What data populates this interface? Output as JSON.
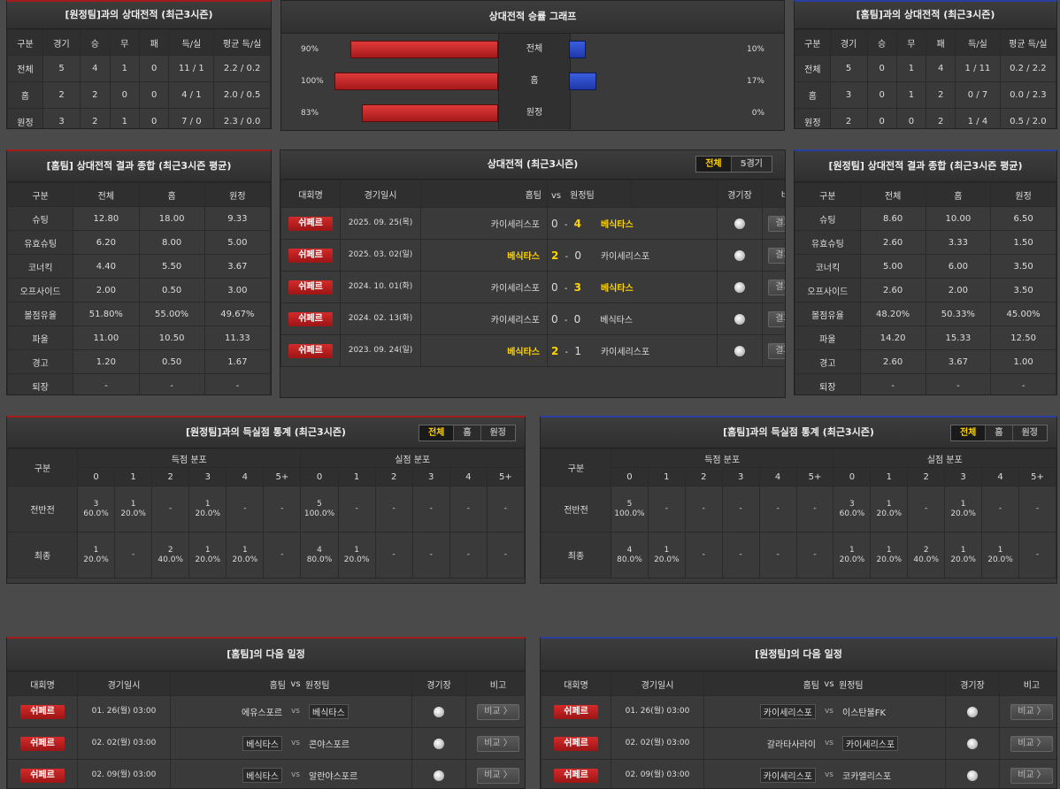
{
  "away_h2h": {
    "title": "[원정팀]과의 상대전적 (최근3시즌)",
    "headers": [
      "구분",
      "경기",
      "승",
      "무",
      "패",
      "득/실",
      "평균 득/실"
    ],
    "rows": [
      [
        "전체",
        "5",
        "4",
        "1",
        "0",
        "11 / 1",
        "2.2 / 0.2"
      ],
      [
        "홈",
        "2",
        "2",
        "0",
        "0",
        "4 / 1",
        "2.0 / 0.5"
      ],
      [
        "원정",
        "3",
        "2",
        "1",
        "0",
        "7 / 0",
        "2.3 / 0.0"
      ]
    ]
  },
  "home_h2h": {
    "title": "[홈팀]과의 상대전적 (최근3시즌)",
    "headers": [
      "구분",
      "경기",
      "승",
      "무",
      "패",
      "득/실",
      "평균 득/실"
    ],
    "rows": [
      [
        "전체",
        "5",
        "0",
        "1",
        "4",
        "1 / 11",
        "0.2 / 2.2"
      ],
      [
        "홈",
        "3",
        "0",
        "1",
        "2",
        "0 / 7",
        "0.0 / 2.3"
      ],
      [
        "원정",
        "2",
        "0",
        "0",
        "2",
        "1 / 4",
        "0.5 / 2.0"
      ]
    ]
  },
  "graph": {
    "title": "상대전적 승률 그래프",
    "rows": [
      {
        "label": "전체",
        "left_pct": "90%",
        "left": 90,
        "right_pct": "10%",
        "right": 10
      },
      {
        "label": "홈",
        "left_pct": "100%",
        "left": 100,
        "right_pct": "17%",
        "right": 17
      },
      {
        "label": "원정",
        "left_pct": "83%",
        "left": 83,
        "right_pct": "0%",
        "right": 0
      }
    ]
  },
  "home_summary": {
    "title": "[홈팀] 상대전적 결과 종합 (최근3시즌 평균)",
    "headers": [
      "구분",
      "전체",
      "홈",
      "원정"
    ],
    "rows": [
      [
        "슈팅",
        "12.80",
        "18.00",
        "9.33"
      ],
      [
        "유효슈팅",
        "6.20",
        "8.00",
        "5.00"
      ],
      [
        "코너킥",
        "4.40",
        "5.50",
        "3.67"
      ],
      [
        "오프사이드",
        "2.00",
        "0.50",
        "3.00"
      ],
      [
        "볼점유율",
        "51.80%",
        "55.00%",
        "49.67%"
      ],
      [
        "파울",
        "11.00",
        "10.50",
        "11.33"
      ],
      [
        "경고",
        "1.20",
        "0.50",
        "1.67"
      ],
      [
        "퇴장",
        "-",
        "-",
        "-"
      ]
    ]
  },
  "away_summary": {
    "title": "[원정팀] 상대전적 결과 종합 (최근3시즌 평균)",
    "headers": [
      "구분",
      "전체",
      "홈",
      "원정"
    ],
    "rows": [
      [
        "슈팅",
        "8.60",
        "10.00",
        "6.50"
      ],
      [
        "유효슈팅",
        "2.60",
        "3.33",
        "1.50"
      ],
      [
        "코너킥",
        "5.00",
        "6.00",
        "3.50"
      ],
      [
        "오프사이드",
        "2.60",
        "2.00",
        "3.50"
      ],
      [
        "볼점유율",
        "48.20%",
        "50.33%",
        "45.00%"
      ],
      [
        "파울",
        "14.20",
        "15.33",
        "12.50"
      ],
      [
        "경고",
        "2.60",
        "3.67",
        "1.00"
      ],
      [
        "퇴장",
        "-",
        "-",
        "-"
      ]
    ]
  },
  "h2h_matches": {
    "title": "상대전적 (최근3시즌)",
    "tabs": [
      "전체",
      "5경기"
    ],
    "headers": {
      "league": "대회명",
      "date": "경기일시",
      "home": "홈팀",
      "vs": "vs",
      "away": "원정팀",
      "stadium": "경기장",
      "note": "비고"
    },
    "rows": [
      {
        "league": "쉬페르",
        "date": "2025. 09. 25(목)",
        "home": "카이세리스포",
        "hs": "0",
        "as": "4",
        "away": "베식타스",
        "win": "away"
      },
      {
        "league": "쉬페르",
        "date": "2025. 03. 02(일)",
        "home": "베식타스",
        "hs": "2",
        "as": "0",
        "away": "카이세리스포",
        "win": "home"
      },
      {
        "league": "쉬페르",
        "date": "2024. 10. 01(화)",
        "home": "카이세리스포",
        "hs": "0",
        "as": "3",
        "away": "베식타스",
        "win": "away"
      },
      {
        "league": "쉬페르",
        "date": "2024. 02. 13(화)",
        "home": "카이세리스포",
        "hs": "0",
        "as": "0",
        "away": "베식타스",
        "win": "none"
      },
      {
        "league": "쉬페르",
        "date": "2023. 09. 24(일)",
        "home": "베식타스",
        "hs": "2",
        "as": "1",
        "away": "카이세리스포",
        "win": "home"
      }
    ],
    "result_label": "결과 〉"
  },
  "away_goals": {
    "title": "[원정팀]과의 득실점 통계 (최근3시즌)",
    "tabs": [
      "전체",
      "홈",
      "원정"
    ],
    "h_label": "구분",
    "scored": "득점 분포",
    "conceded": "실점 분포",
    "cols": [
      "0",
      "1",
      "2",
      "3",
      "4",
      "5+"
    ],
    "rows": [
      {
        "label": "전반전",
        "cells": [
          [
            "3",
            "60.0%"
          ],
          [
            "1",
            "20.0%"
          ],
          [
            "-",
            ""
          ],
          [
            "1",
            "20.0%"
          ],
          [
            "-",
            ""
          ],
          [
            "-",
            ""
          ],
          [
            "5",
            "100.0%"
          ],
          [
            "-",
            ""
          ],
          [
            "-",
            ""
          ],
          [
            "-",
            ""
          ],
          [
            "-",
            ""
          ],
          [
            "-",
            ""
          ]
        ]
      },
      {
        "label": "최종",
        "cells": [
          [
            "1",
            "20.0%"
          ],
          [
            "-",
            ""
          ],
          [
            "2",
            "40.0%"
          ],
          [
            "1",
            "20.0%"
          ],
          [
            "1",
            "20.0%"
          ],
          [
            "-",
            ""
          ],
          [
            "4",
            "80.0%"
          ],
          [
            "1",
            "20.0%"
          ],
          [
            "-",
            ""
          ],
          [
            "-",
            ""
          ],
          [
            "-",
            ""
          ],
          [
            "-",
            ""
          ]
        ]
      }
    ]
  },
  "home_goals": {
    "title": "[홈팀]과의 득실점 통계 (최근3시즌)",
    "tabs": [
      "전체",
      "홈",
      "원정"
    ],
    "h_label": "구분",
    "scored": "득점 분포",
    "conceded": "실점 분포",
    "cols": [
      "0",
      "1",
      "2",
      "3",
      "4",
      "5+"
    ],
    "rows": [
      {
        "label": "전반전",
        "cells": [
          [
            "5",
            "100.0%"
          ],
          [
            "-",
            ""
          ],
          [
            "-",
            ""
          ],
          [
            "-",
            ""
          ],
          [
            "-",
            ""
          ],
          [
            "-",
            ""
          ],
          [
            "3",
            "60.0%"
          ],
          [
            "1",
            "20.0%"
          ],
          [
            "-",
            ""
          ],
          [
            "1",
            "20.0%"
          ],
          [
            "-",
            ""
          ],
          [
            "-",
            ""
          ]
        ]
      },
      {
        "label": "최종",
        "cells": [
          [
            "4",
            "80.0%"
          ],
          [
            "1",
            "20.0%"
          ],
          [
            "-",
            ""
          ],
          [
            "-",
            ""
          ],
          [
            "-",
            ""
          ],
          [
            "-",
            ""
          ],
          [
            "1",
            "20.0%"
          ],
          [
            "1",
            "20.0%"
          ],
          [
            "2",
            "40.0%"
          ],
          [
            "1",
            "20.0%"
          ],
          [
            "1",
            "20.0%"
          ],
          [
            "-",
            ""
          ]
        ]
      }
    ]
  },
  "home_next": {
    "title": "[홈팀]의 다음 일정",
    "headers": {
      "league": "대회명",
      "date": "경기일시",
      "home": "홈팀",
      "vs": "vs",
      "away": "원정팀",
      "stadium": "경기장",
      "note": "비고"
    },
    "rows": [
      {
        "league": "쉬페르",
        "date": "01. 26(월) 03:00",
        "home": "에유스포르",
        "away": "베식타스",
        "box": "away"
      },
      {
        "league": "쉬페르",
        "date": "02. 02(월) 03:00",
        "home": "베식타스",
        "away": "콘야스포르",
        "box": "home"
      },
      {
        "league": "쉬페르",
        "date": "02. 09(월) 03:00",
        "home": "베식타스",
        "away": "알란야스포르",
        "box": "home"
      }
    ],
    "compare_label": "비교 〉"
  },
  "away_next": {
    "title": "[원정팀]의 다음 일정",
    "headers": {
      "league": "대회명",
      "date": "경기일시",
      "home": "홈팀",
      "vs": "vs",
      "away": "원정팀",
      "stadium": "경기장",
      "note": "비고"
    },
    "rows": [
      {
        "league": "쉬페르",
        "date": "01. 26(월) 03:00",
        "home": "카이세리스포",
        "away": "이스탄불FK",
        "box": "home"
      },
      {
        "league": "쉬페르",
        "date": "02. 02(월) 03:00",
        "home": "갈라타사라이",
        "away": "카이세리스포",
        "box": "away"
      },
      {
        "league": "쉬페르",
        "date": "02. 09(월) 03:00",
        "home": "카이세리스포",
        "away": "코카엘리스포",
        "box": "home"
      }
    ],
    "compare_label": "비교 〉"
  }
}
